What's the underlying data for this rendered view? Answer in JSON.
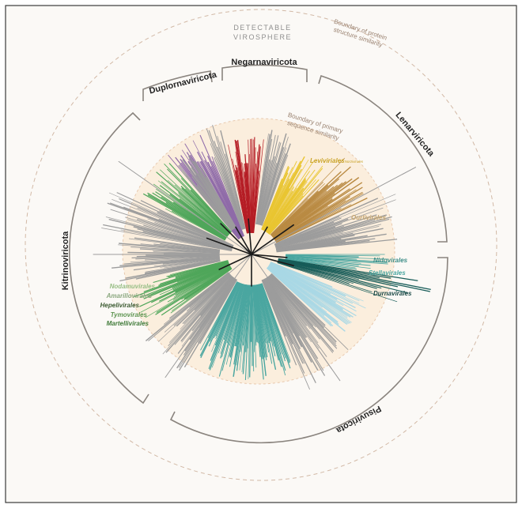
{
  "header": {
    "line1": "DETECTABLE",
    "line2": "VIROSPHERE"
  },
  "annotations": {
    "protein_line1": "Boundary of protein",
    "protein_line2": "structure similarity",
    "sequence_line1": "Boundary of primary",
    "sequence_line2": "sequence similarity"
  },
  "phyla": {
    "negarnaviricota": "Negarnaviricota",
    "duplornaviricota": "Duplornaviricota",
    "lenarviricota": "Lenarviricota",
    "kitrinoviricota": "Kitrinoviricota",
    "pisuviricota": "Pisuviricota"
  },
  "orders": {
    "leviviriales": "Leviviriales",
    "leviviriales_suffix": "Norzivirales",
    "ourlivirales": "Ourlivirales",
    "nidovirales": "Nidovirales",
    "stellavirales": "Stellavirales",
    "durnavirales": "Durnavirales",
    "nodamuvirales": "Nodamuvirales",
    "amarillovirales": "Amarillovirales",
    "hepelivirales": "Hepelivirales",
    "tymovirales": "Tymovirales",
    "martellivirales": "Martellivirales"
  },
  "colors": {
    "background": "#fbf9f6",
    "sequence_disc": "#fbeedd",
    "bracket": "#8a847e",
    "dashed_ring": "#d2b9a6",
    "negarnaviricota_red": "#b51d25",
    "duplornaviricota_purple": "#8e6aa8",
    "leviviriales_yellow": "#e9c531",
    "ourlivirales_brown": "#b98a42",
    "kitrinoviricota_green": "#4fa65a",
    "nidovirales_teal": "#4aa6a0",
    "durnavirales_dark_teal": "#175c58",
    "pisuviricota_light_blue": "#a9d8e5",
    "unclassified_gray": "#9c9c9c"
  }
}
